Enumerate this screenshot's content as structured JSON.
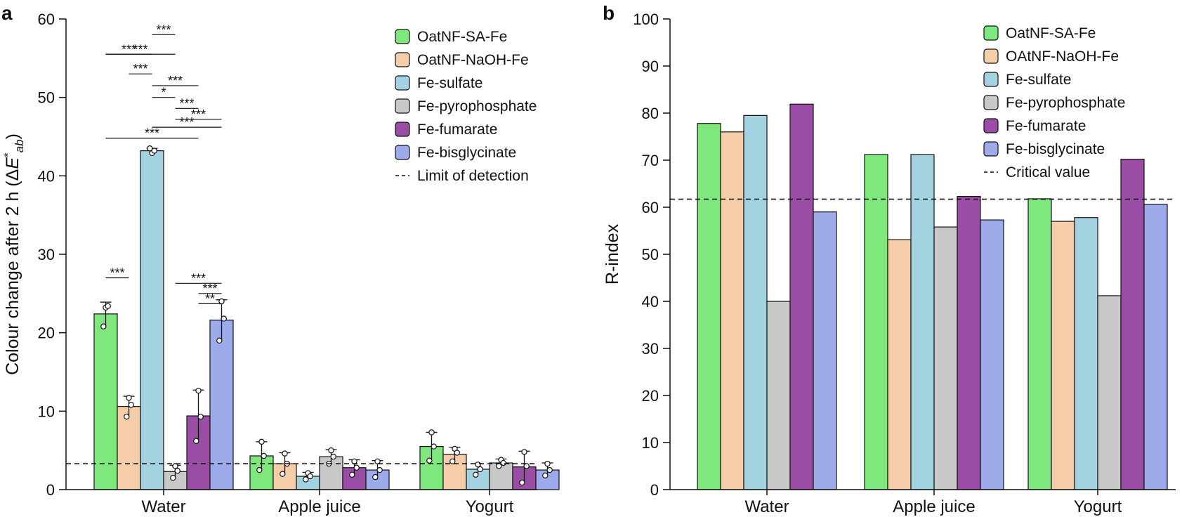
{
  "colors": {
    "series": [
      "#7EE87E",
      "#F6CDA9",
      "#A3D3E0",
      "#C8C8C8",
      "#9A4DA4",
      "#9DABEA"
    ],
    "axis": "#111111"
  },
  "chart_data": [
    {
      "panel": "a",
      "type": "bar",
      "title": "",
      "xlabel": "",
      "ylabel": "Colour change after 2 h (ΔE*ab)",
      "ylim": [
        0,
        60
      ],
      "yticks": [
        "0",
        "10",
        "20",
        "30",
        "40",
        "50",
        "60"
      ],
      "categories": [
        "Water",
        "Apple juice",
        "Yogurt"
      ],
      "series": [
        {
          "name": "OatNF-SA-Fe",
          "values": [
            22.4,
            4.3,
            5.5
          ],
          "errors": [
            1.5,
            1.8,
            1.8
          ],
          "points": [
            [
              20.8,
              23.2,
              23.4
            ],
            [
              2.5,
              6.1,
              4.3
            ],
            [
              3.7,
              7.3,
              5.5
            ]
          ]
        },
        {
          "name": "OatNF-NaOH-Fe",
          "values": [
            10.6,
            3.3,
            4.5
          ],
          "errors": [
            1.3,
            1.4,
            0.9
          ],
          "points": [
            [
              9.3,
              11.7,
              10.8
            ],
            [
              2.0,
              4.6,
              3.3
            ],
            [
              3.6,
              5.2,
              4.7
            ]
          ]
        },
        {
          "name": "Fe-sulfate",
          "values": [
            43.2,
            1.7,
            2.6
          ],
          "errors": [
            0.3,
            0.5,
            0.7
          ],
          "points": [
            [
              43.5,
              42.9,
              43.2
            ],
            [
              1.3,
              2.1,
              1.7
            ],
            [
              1.9,
              3.2,
              2.6
            ]
          ]
        },
        {
          "name": "Fe-pyrophosphate",
          "values": [
            2.3,
            4.2,
            3.4
          ],
          "errors": [
            0.8,
            0.9,
            0.5
          ],
          "points": [
            [
              1.5,
              3.0,
              2.4
            ],
            [
              3.3,
              5.0,
              4.2
            ],
            [
              3.0,
              3.8,
              3.4
            ]
          ]
        },
        {
          "name": "Fe-fumarate",
          "values": [
            9.4,
            2.8,
            2.9
          ],
          "errors": [
            3.3,
            1.0,
            2.0
          ],
          "points": [
            [
              6.2,
              12.6,
              9.3
            ],
            [
              1.9,
              3.6,
              2.8
            ],
            [
              0.9,
              4.8,
              3.0
            ]
          ]
        },
        {
          "name": "Fe-bisglycinate",
          "values": [
            21.6,
            2.5,
            2.5
          ],
          "errors": [
            2.6,
            1.2,
            0.9
          ],
          "points": [
            [
              19.0,
              24.0,
              21.8
            ],
            [
              1.6,
              3.6,
              2.5
            ],
            [
              1.8,
              3.3,
              2.5
            ]
          ]
        }
      ],
      "reference_line": {
        "name": "Limit of detection",
        "value": 3.3
      },
      "legend": "top-right",
      "significance": [
        {
          "from": 0,
          "to": 1,
          "label": "***",
          "y": 27.0
        },
        {
          "from": 4,
          "to": 5,
          "label": "**",
          "y": 23.7
        },
        {
          "from": 5,
          "to": 4,
          "label": "***",
          "y": 25.0,
          "span": [
            4,
            5
          ]
        },
        {
          "from": 3,
          "to": 5,
          "label": "***",
          "y": 26.3
        },
        {
          "from": 2,
          "to": 3,
          "label": "***",
          "y": 58.0
        },
        {
          "from": 0,
          "to": 3,
          "label": "***",
          "y": 55.5
        },
        {
          "from": 0,
          "to": 2,
          "label": "***",
          "y": 55.5
        },
        {
          "from": 1,
          "to": 2,
          "label": "***",
          "y": 53.0
        },
        {
          "from": 2,
          "to": 4,
          "label": "***",
          "y": 51.5
        },
        {
          "from": 2,
          "to": 3,
          "label": "*",
          "y": 50.0
        },
        {
          "from": 3,
          "to": 4,
          "label": "***",
          "y": 48.6
        },
        {
          "from": 3,
          "to": 5,
          "label": "***",
          "y": 47.2
        },
        {
          "from": 2,
          "to": 5,
          "label": "***",
          "y": 46.2
        },
        {
          "from": 0,
          "to": 4,
          "label": "***",
          "y": 44.8
        }
      ]
    },
    {
      "panel": "b",
      "type": "bar",
      "title": "",
      "xlabel": "",
      "ylabel": "R-index",
      "ylim": [
        0,
        100
      ],
      "yticks": [
        "0",
        "10",
        "20",
        "30",
        "40",
        "50",
        "60",
        "70",
        "80",
        "90",
        "100"
      ],
      "categories": [
        "Water",
        "Apple juice",
        "Yogurt"
      ],
      "series": [
        {
          "name": "OatNF-SA-Fe",
          "values": [
            77.8,
            71.2,
            61.8
          ]
        },
        {
          "name": "OAtNF-NaOH-Fe",
          "values": [
            76.0,
            53.1,
            57.0
          ]
        },
        {
          "name": "Fe-sulfate",
          "values": [
            79.5,
            71.2,
            57.8
          ]
        },
        {
          "name": "Fe-pyrophosphate",
          "values": [
            40.0,
            55.8,
            41.2
          ]
        },
        {
          "name": "Fe-fumarate",
          "values": [
            81.9,
            62.3,
            70.2
          ]
        },
        {
          "name": "Fe-bisglycinate",
          "values": [
            59.0,
            57.3,
            60.6
          ]
        }
      ],
      "reference_line": {
        "name": "Critical value",
        "value": 61.7
      },
      "legend": "top-right"
    }
  ],
  "panel_labels": [
    "a",
    "b"
  ]
}
